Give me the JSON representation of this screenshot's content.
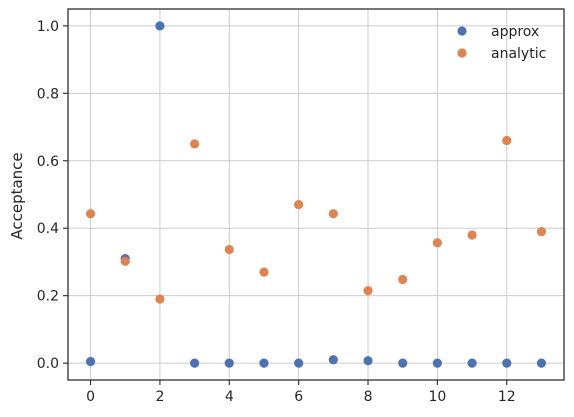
{
  "chart_data": {
    "type": "scatter",
    "title": "",
    "xlabel": "",
    "ylabel": "Acceptance",
    "xlim": [
      -0.65,
      13.65
    ],
    "ylim": [
      -0.05,
      1.05
    ],
    "xticks": [
      0,
      2,
      4,
      6,
      8,
      10,
      12
    ],
    "yticks": [
      0.0,
      0.2,
      0.4,
      0.6,
      0.8,
      1.0
    ],
    "grid": true,
    "legend_position": "top-right",
    "x": [
      0,
      1,
      2,
      3,
      4,
      5,
      6,
      7,
      8,
      9,
      10,
      11,
      12,
      13
    ],
    "series": [
      {
        "name": "approx",
        "color": "#4c72b0",
        "values": [
          0.005,
          0.31,
          1.0,
          0.0,
          0.0,
          0.0,
          0.0,
          0.01,
          0.007,
          0.0,
          0.0,
          0.0,
          0.0,
          0.0
        ]
      },
      {
        "name": "analytic",
        "color": "#dd8452",
        "values": [
          0.443,
          0.302,
          0.19,
          0.65,
          0.337,
          0.27,
          0.47,
          0.443,
          0.215,
          0.248,
          0.357,
          0.38,
          0.66,
          0.39
        ]
      }
    ]
  }
}
